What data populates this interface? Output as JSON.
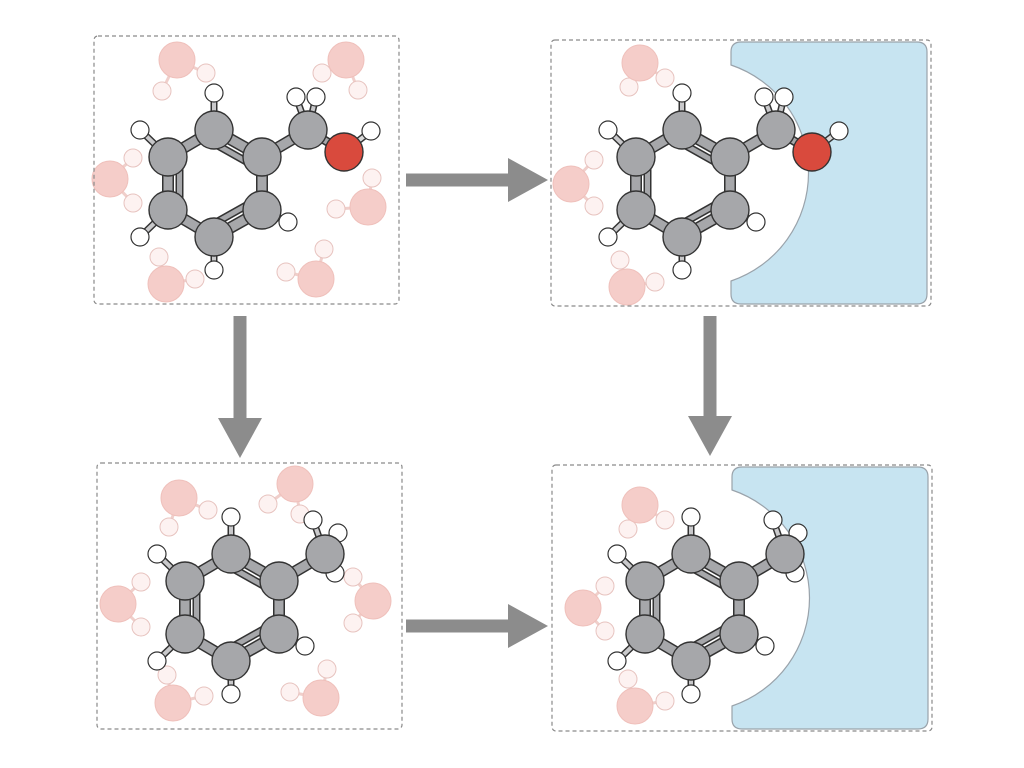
{
  "diagram": {
    "panels": [
      {
        "id": "benzyl-alcohol-in-water",
        "molecule": "benzyl-alcohol",
        "environment": "water",
        "host_pocket": false
      },
      {
        "id": "benzyl-alcohol-in-host",
        "molecule": "benzyl-alcohol",
        "environment": "water",
        "host_pocket": true
      },
      {
        "id": "toluene-in-water",
        "molecule": "toluene",
        "environment": "water",
        "host_pocket": false
      },
      {
        "id": "toluene-in-host",
        "molecule": "toluene",
        "environment": "water",
        "host_pocket": true
      }
    ],
    "arrows": [
      {
        "from": "benzyl-alcohol-in-water",
        "to": "benzyl-alcohol-in-host"
      },
      {
        "from": "benzyl-alcohol-in-water",
        "to": "toluene-in-water"
      },
      {
        "from": "benzyl-alcohol-in-host",
        "to": "toluene-in-host"
      },
      {
        "from": "toluene-in-water",
        "to": "toluene-in-host"
      }
    ],
    "colors": {
      "carbon": "#a6a7aa",
      "hydrogen": "#ffffff",
      "oxygen": "#d94a3d",
      "water_oxygen": "#f5cdc9",
      "water_hydrogen": "#fdf2f1",
      "host": "#c7e4f1",
      "host_stroke": "#9aa3ab",
      "arrow": "#8c8c8c",
      "panel_border": "#8a8a8a",
      "bond": "#333333"
    }
  }
}
